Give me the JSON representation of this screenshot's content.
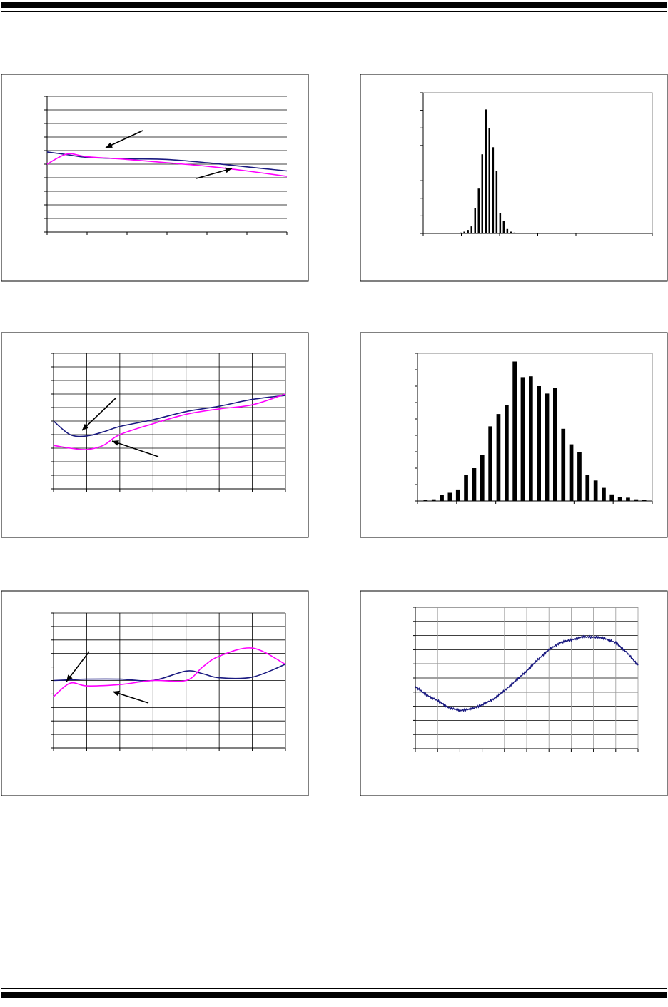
{
  "colors": {
    "line_a": "#1a1a80",
    "line_b": "#ff00ff",
    "bar": "#000000",
    "frame": "#000000",
    "grid": "#000000"
  },
  "chart_data": [
    {
      "type": "line",
      "title": "",
      "xlabel": "",
      "ylabel": "",
      "xlim": [
        0,
        6
      ],
      "ylim": [
        0,
        10
      ],
      "grid": {
        "horizontal": true,
        "vertical": false
      },
      "x": [
        0,
        0.5,
        1,
        2,
        3,
        4,
        5,
        6
      ],
      "series": [
        {
          "values": [
            5.9,
            5.7,
            5.5,
            5.4,
            5.35,
            5.1,
            4.8,
            4.5
          ]
        },
        {
          "values": [
            5.0,
            5.75,
            5.55,
            5.35,
            5.1,
            4.85,
            4.5,
            4.1
          ]
        }
      ]
    },
    {
      "type": "bar",
      "title": "",
      "xlabel": "",
      "ylabel": "",
      "ylim": [
        0,
        8
      ],
      "values": [
        0,
        0,
        0,
        0,
        0,
        0,
        0,
        0,
        0,
        0,
        0.05,
        0.1,
        0.2,
        0.4,
        1.45,
        2.55,
        4.5,
        7.05,
        6.0,
        4.9,
        3.55,
        1.15,
        0.7,
        0.25,
        0.1,
        0.05,
        0,
        0,
        0,
        0,
        0,
        0,
        0,
        0,
        0,
        0,
        0,
        0,
        0,
        0,
        0,
        0,
        0,
        0,
        0,
        0,
        0,
        0,
        0,
        0,
        0,
        0,
        0,
        0,
        0,
        0,
        0,
        0,
        0,
        0,
        0,
        0,
        0,
        0
      ],
      "bar_range": [
        10,
        26
      ]
    },
    {
      "type": "line",
      "title": "",
      "xlabel": "",
      "ylabel": "",
      "xlim": [
        0,
        7
      ],
      "ylim": [
        0,
        10
      ],
      "grid": {
        "horizontal": true,
        "vertical": true
      },
      "x": [
        0,
        0.5,
        1,
        1.5,
        2,
        3,
        4,
        5,
        6,
        7
      ],
      "series": [
        {
          "values": [
            5.0,
            4.0,
            3.9,
            4.2,
            4.6,
            5.1,
            5.7,
            6.1,
            6.6,
            6.9
          ]
        },
        {
          "values": [
            3.2,
            3.0,
            2.9,
            3.2,
            4.0,
            4.8,
            5.5,
            5.9,
            6.2,
            7.0
          ]
        }
      ]
    },
    {
      "type": "bar",
      "title": "",
      "xlabel": "",
      "ylabel": "",
      "ylim": [
        0,
        9
      ],
      "values": [
        0.05,
        0.1,
        0.35,
        0.5,
        0.7,
        1.6,
        2.0,
        2.8,
        4.55,
        5.3,
        5.85,
        8.5,
        7.55,
        7.6,
        7.0,
        6.55,
        6.9,
        4.4,
        3.45,
        3.0,
        1.6,
        1.25,
        0.8,
        0.4,
        0.25,
        0.2,
        0.1,
        0.05
      ],
      "bar_range": [
        0,
        28
      ]
    },
    {
      "type": "line",
      "title": "",
      "xlabel": "",
      "ylabel": "",
      "xlim": [
        0,
        7
      ],
      "ylim": [
        0,
        10
      ],
      "grid": {
        "horizontal": true,
        "vertical": true
      },
      "x": [
        0,
        0.5,
        1,
        2,
        3,
        4,
        4.5,
        5,
        6,
        7
      ],
      "series": [
        {
          "values": [
            5.0,
            5.05,
            5.1,
            5.1,
            5.0,
            5.7,
            5.5,
            5.2,
            5.25,
            6.2
          ]
        },
        {
          "values": [
            3.8,
            4.8,
            4.6,
            4.7,
            5.0,
            5.0,
            6.0,
            6.8,
            7.4,
            6.2
          ]
        }
      ]
    },
    {
      "type": "line",
      "title": "",
      "xlabel": "",
      "ylabel": "",
      "xlim": [
        0,
        10
      ],
      "ylim": [
        0,
        10
      ],
      "grid": {
        "horizontal": true,
        "vertical": true
      },
      "x": [
        0,
        0.5,
        1,
        1.5,
        2,
        2.5,
        3,
        3.5,
        4,
        4.5,
        5,
        5.5,
        6,
        6.5,
        7,
        7.5,
        8,
        8.5,
        9,
        9.5,
        10
      ],
      "series": [
        {
          "values": [
            4.4,
            3.8,
            3.4,
            2.9,
            2.7,
            2.8,
            3.1,
            3.5,
            4.1,
            4.8,
            5.5,
            6.3,
            7.0,
            7.5,
            7.7,
            7.9,
            7.9,
            7.8,
            7.5,
            6.8,
            5.9
          ]
        }
      ]
    }
  ]
}
